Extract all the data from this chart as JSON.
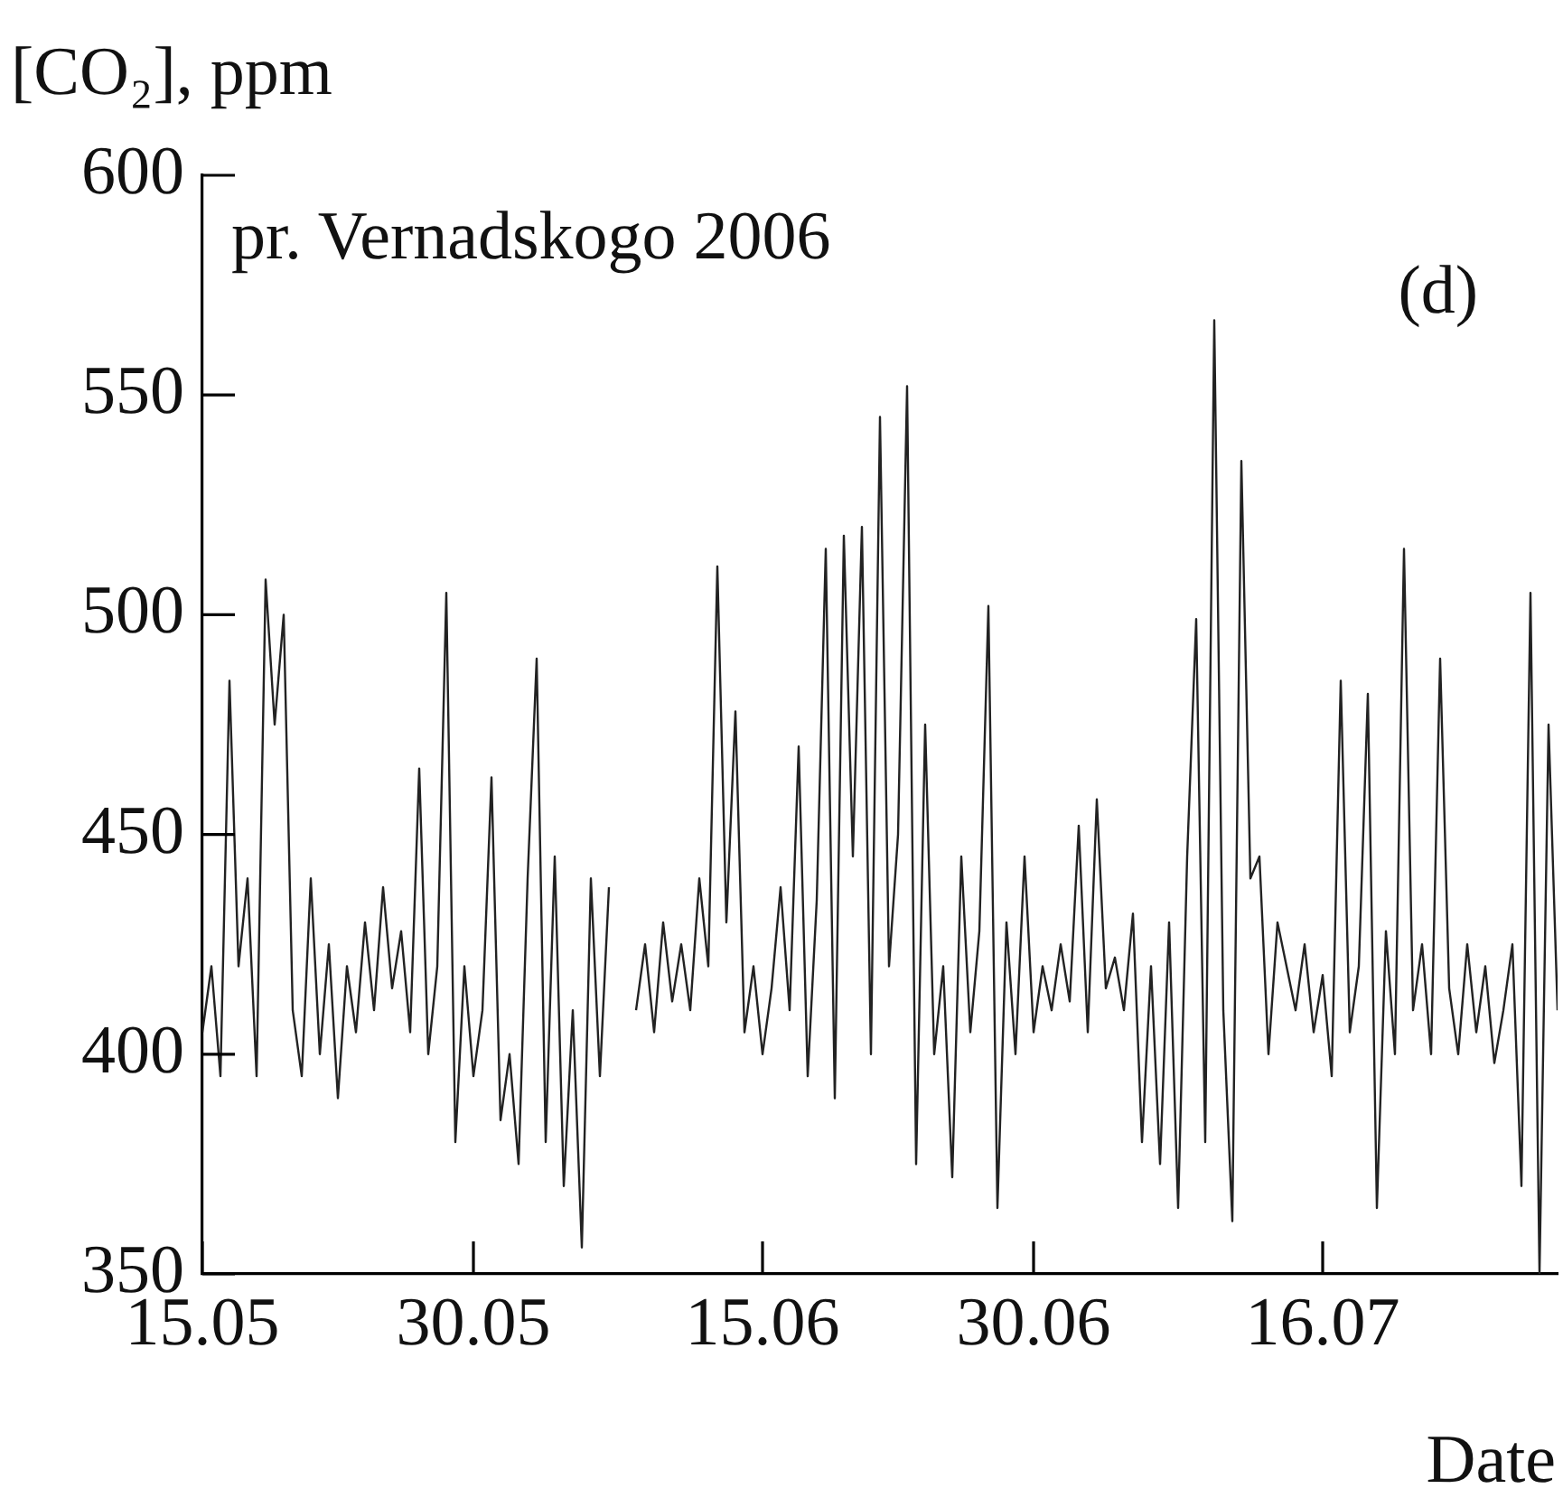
{
  "chart_data": {
    "type": "line",
    "ylabel": "[CO₂], ppm",
    "xlabel": "Date",
    "annotations": [
      "pr. Vernadskogo 2006",
      "(d)"
    ],
    "xlim": [
      "--05-15",
      "--07-29"
    ],
    "xticks": [
      {
        "value": "--05-15",
        "label": "15.05"
      },
      {
        "value": "--05-30",
        "label": "30.05"
      },
      {
        "value": "--06-15",
        "label": "15.06"
      },
      {
        "value": "--06-30",
        "label": "30.06"
      },
      {
        "value": "--07-16",
        "label": "16.07"
      }
    ],
    "ylim": [
      350,
      600
    ],
    "yticks": [
      350,
      400,
      450,
      500,
      550,
      600
    ],
    "marker": "none",
    "line_style": "solid",
    "series": [
      {
        "color": "#222222",
        "x": [
          "--05-15T00:00",
          "--05-15T12:00",
          "--05-16T00:00",
          "--05-16T12:00",
          "--05-17T00:00",
          "--05-17T12:00",
          "--05-18T00:00",
          "--05-18T12:00",
          "--05-19T00:00",
          "--05-19T12:00",
          "--05-20T00:00",
          "--05-20T12:00",
          "--05-21T00:00",
          "--05-21T12:00",
          "--05-22T00:00",
          "--05-22T12:00",
          "--05-23T00:00",
          "--05-23T12:00",
          "--05-24T00:00",
          "--05-24T12:00",
          "--05-25T00:00",
          "--05-25T12:00",
          "--05-26T00:00",
          "--05-26T12:00",
          "--05-27T00:00",
          "--05-27T12:00",
          "--05-28T00:00",
          "--05-28T12:00",
          "--05-29T00:00",
          "--05-29T12:00",
          "--05-30T00:00",
          "--05-30T12:00",
          "--05-31T00:00",
          "--05-31T12:00",
          "--06-01T00:00",
          "--06-01T12:00",
          "--06-02T00:00",
          "--06-02T12:00",
          "--06-03T00:00",
          "--06-03T12:00",
          "--06-04T00:00",
          "--06-04T12:00",
          "--06-05T00:00",
          "--06-05T12:00",
          "--06-06T00:00",
          "--06-06T12:00",
          "--06-07T00:00",
          "--06-07T12:00",
          "--06-08T00:00",
          "--06-08T12:00",
          "--06-09T00:00",
          "--06-09T12:00",
          "--06-10T00:00",
          "--06-10T12:00",
          "--06-11T00:00",
          "--06-11T12:00",
          "--06-12T00:00",
          "--06-12T12:00",
          "--06-13T00:00",
          "--06-13T12:00",
          "--06-14T00:00",
          "--06-14T12:00",
          "--06-15T00:00",
          "--06-15T12:00",
          "--06-16T00:00",
          "--06-16T12:00",
          "--06-17T00:00",
          "--06-17T12:00",
          "--06-18T00:00",
          "--06-18T12:00",
          "--06-19T00:00",
          "--06-19T12:00",
          "--06-20T00:00",
          "--06-20T12:00",
          "--06-21T00:00",
          "--06-21T12:00",
          "--06-22T00:00",
          "--06-22T12:00",
          "--06-23T00:00",
          "--06-23T12:00",
          "--06-24T00:00",
          "--06-24T12:00",
          "--06-25T00:00",
          "--06-25T12:00",
          "--06-26T00:00",
          "--06-26T12:00",
          "--06-27T00:00",
          "--06-27T12:00",
          "--06-28T00:00",
          "--06-28T12:00",
          "--06-29T00:00",
          "--06-29T12:00",
          "--06-30T00:00",
          "--06-30T12:00",
          "--07-01T00:00",
          "--07-01T12:00",
          "--07-02T00:00",
          "--07-02T12:00",
          "--07-03T00:00",
          "--07-03T12:00",
          "--07-04T00:00",
          "--07-04T12:00",
          "--07-05T00:00",
          "--07-05T12:00",
          "--07-06T00:00",
          "--07-06T12:00",
          "--07-07T00:00",
          "--07-07T12:00",
          "--07-08T00:00",
          "--07-08T12:00",
          "--07-09T00:00",
          "--07-09T12:00",
          "--07-10T00:00",
          "--07-10T12:00",
          "--07-11T00:00",
          "--07-11T12:00",
          "--07-12T00:00",
          "--07-12T12:00",
          "--07-13T00:00",
          "--07-13T12:00",
          "--07-14T00:00",
          "--07-14T12:00",
          "--07-15T00:00",
          "--07-15T12:00",
          "--07-16T00:00",
          "--07-16T12:00",
          "--07-17T00:00",
          "--07-17T12:00",
          "--07-18T00:00",
          "--07-18T12:00",
          "--07-19T00:00",
          "--07-19T12:00",
          "--07-20T00:00",
          "--07-20T12:00",
          "--07-21T00:00",
          "--07-21T12:00",
          "--07-22T00:00",
          "--07-22T12:00",
          "--07-23T00:00",
          "--07-23T12:00",
          "--07-24T00:00",
          "--07-24T12:00",
          "--07-25T00:00",
          "--07-25T12:00",
          "--07-26T00:00",
          "--07-26T12:00",
          "--07-27T00:00",
          "--07-27T12:00",
          "--07-28T00:00",
          "--07-28T12:00",
          "--07-29T00:00"
        ],
        "values": [
          405,
          420,
          395,
          485,
          420,
          440,
          395,
          508,
          475,
          500,
          410,
          395,
          440,
          400,
          425,
          390,
          420,
          405,
          430,
          410,
          438,
          415,
          428,
          405,
          465,
          400,
          420,
          505,
          380,
          420,
          395,
          410,
          463,
          385,
          400,
          375,
          440,
          490,
          380,
          445,
          370,
          410,
          356,
          440,
          395,
          438,
          null,
          null,
          410,
          425,
          405,
          430,
          412,
          425,
          410,
          440,
          420,
          511,
          430,
          478,
          405,
          420,
          400,
          415,
          438,
          410,
          470,
          395,
          435,
          515,
          390,
          518,
          445,
          520,
          400,
          545,
          420,
          450,
          552,
          375,
          475,
          400,
          420,
          372,
          445,
          405,
          428,
          502,
          365,
          430,
          400,
          445,
          405,
          420,
          410,
          425,
          412,
          452,
          405,
          458,
          415,
          422,
          410,
          432,
          380,
          420,
          375,
          430,
          365,
          445,
          499,
          380,
          567,
          410,
          362,
          535,
          440,
          445,
          400,
          430,
          420,
          410,
          425,
          405,
          418,
          395,
          485,
          405,
          420,
          482,
          365,
          428,
          400,
          515,
          410,
          425,
          400,
          490,
          415,
          400,
          425,
          405,
          420,
          398,
          410,
          425,
          370,
          505,
          350,
          475,
          410
        ]
      }
    ]
  }
}
